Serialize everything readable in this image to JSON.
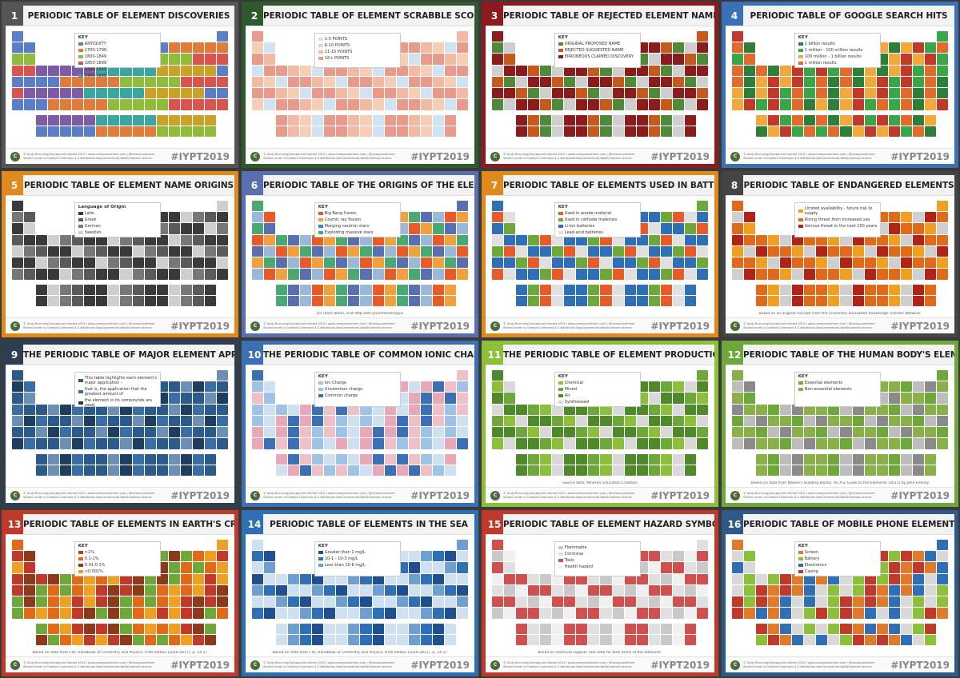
{
  "credit_line1": "© Andy Brunning/Compound Interest 2019 | www.compoundchem.com | @compoundchem",
  "credit_line2": "Shared under a Creative Commons 4.0 Attribution-NonCommercial-NoDerivatives licence",
  "hashtag": "#IYPT2019",
  "logo_letter": "C",
  "posters": [
    {
      "num": "1",
      "title": "PERIODIC TABLE OF ELEMENT DISCOVERIES",
      "accent": "#555555",
      "palette": [
        "#5b7ec9",
        "#e07b39",
        "#8fbc3a",
        "#d9534f",
        "#7d5ba6",
        "#3aa6a0",
        "#c9a227"
      ],
      "key_title": "KEY",
      "key_items": [
        "ANTIQUITY",
        "1700-1799",
        "1800-1849",
        "1850-1899",
        "1900-1949",
        "1950-1999"
      ],
      "note": ""
    },
    {
      "num": "2",
      "title": "PERIODIC TABLE OF ELEMENT SCRABBLE SCORES",
      "accent": "#2e5a2e",
      "palette": [
        "#cfe3f2",
        "#f6cdb5",
        "#f2b9a3",
        "#e89b8a"
      ],
      "key_title": "",
      "key_items": [
        "1-5 POINTS",
        "6-10 POINTS",
        "11-15 POINTS",
        "16+ POINTS"
      ],
      "note": ""
    },
    {
      "num": "3",
      "title": "PERIODIC TABLE OF REJECTED ELEMENT NAMES",
      "accent": "#8c1c1c",
      "palette": [
        "#4e8a3a",
        "#c65a1e",
        "#8c1c1c",
        "#cfcfcf"
      ],
      "key_title": "KEY",
      "key_items": [
        "ORIGINAL PROPOSED NAME",
        "REJECTED SUGGESTED NAME",
        "ERRONEOUS CLAIMED DISCOVERY"
      ],
      "note": ""
    },
    {
      "num": "4",
      "title": "PERIODIC TABLE OF GOOGLE SEARCH HITS",
      "accent": "#3b6fb6",
      "palette": [
        "#2f7f3c",
        "#3aa64a",
        "#f2a93b",
        "#e06b2c",
        "#c0392b"
      ],
      "key_title": "KEY",
      "key_items": [
        "1 billion results",
        "1 million - 100 million results",
        "100 million - 1 billion results",
        "1 million results"
      ],
      "note": ""
    },
    {
      "num": "5",
      "title": "PERIODIC TABLE OF ELEMENT NAME ORIGINS",
      "accent": "#e08a1e",
      "palette": [
        "#3a3a3a",
        "#5a5a5a",
        "#777777",
        "#cfcfcf"
      ],
      "key_title": "Language of Origin",
      "key_items": [
        "Latin",
        "Greek",
        "German",
        "Swedish"
      ],
      "note": ""
    },
    {
      "num": "6",
      "title": "PERIODIC TABLE OF THE ORIGINS OF THE ELEMENTS",
      "accent": "#5a6fb0",
      "palette": [
        "#e85a28",
        "#f0a03c",
        "#2e8fc9",
        "#4aa872",
        "#5a6fb0",
        "#9bb8d9"
      ],
      "key_title": "KEY",
      "key_items": [
        "Big Bang fusion",
        "Cosmic ray fission",
        "Merging neutron stars",
        "Exploding massive stars"
      ],
      "note": "For more detail, visit http://bit.ly/ElementOrigins"
    },
    {
      "num": "7",
      "title": "PERIODIC TABLE OF ELEMENTS USED IN BATTERIES",
      "accent": "#e08a1e",
      "palette": [
        "#e85a28",
        "#6ea83a",
        "#2e6fb6",
        "#e0e0e0"
      ],
      "key_title": "KEY",
      "key_items": [
        "Used in anode material",
        "Used in cathode materials",
        "Li-ion batteries",
        "Lead-acid batteries"
      ],
      "note": ""
    },
    {
      "num": "8",
      "title": "PERIODIC TABLE OF ENDANGERED ELEMENTS",
      "accent": "#444444",
      "palette": [
        "#f0a020",
        "#e06a1a",
        "#b02418",
        "#cfcfcf"
      ],
      "key_title": "",
      "key_items": [
        "Limited availability - future risk to supply",
        "Rising threat from increased use",
        "Serious threat in the next 100 years"
      ],
      "note": "Based on an original concept from the Chemistry Innovation Knowledge Transfer Network."
    },
    {
      "num": "9",
      "title": "THE PERIODIC TABLE OF MAJOR ELEMENT APPLICATIONS",
      "accent": "#2c3e50",
      "palette": [
        "#2c5a8a",
        "#3a6ea5",
        "#1f3e5f",
        "#6d8fb3"
      ],
      "key_title": "",
      "key_items": [
        "This table highlights each element's major application -",
        "that is, the application that the greatest amount of",
        "the element in its compounds are used."
      ],
      "note": ""
    },
    {
      "num": "10",
      "title": "THE PERIODIC TABLE OF COMMON IONIC CHARGES",
      "accent": "#3b6fb6",
      "palette": [
        "#e8a8b8",
        "#9ec3e6",
        "#3b6fb6",
        "#cfe0f0",
        "#f0c0c8"
      ],
      "key_title": "KEY",
      "key_items": [
        "Ion Charge",
        "Uncommon charge",
        "Common charge"
      ],
      "note": ""
    },
    {
      "num": "11",
      "title": "THE PERIODIC TABLE OF ELEMENT PRODUCTION SOURCES",
      "accent": "#8cbf3a",
      "palette": [
        "#8cbf3a",
        "#6ea83a",
        "#4e8a2a",
        "#d9d9d9"
      ],
      "key_title": "KEY",
      "key_items": [
        "Chemical",
        "Mined",
        "Air",
        "Synthesised"
      ],
      "note": "Source data: Minerals Education Coalition"
    },
    {
      "num": "12",
      "title": "PERIODIC TABLE OF THE HUMAN BODY'S ELEMENTS",
      "accent": "#6ea83a",
      "palette": [
        "#6ea83a",
        "#8ab04a",
        "#8a8a8a",
        "#bdbdbd"
      ],
      "key_title": "KEY",
      "key_items": [
        "Essential elements",
        "Non-essential elements"
      ],
      "note": "Based on data from Nature's Building Blocks: An A-Z Guide to the Elements (2011) by John Emsley"
    },
    {
      "num": "13",
      "title": "PERIODIC TABLE OF ELEMENTS IN EARTH'S CRUST",
      "accent": "#c0392b",
      "palette": [
        "#c0392b",
        "#e06a1a",
        "#8c3a1a",
        "#f0a020",
        "#6ea83a"
      ],
      "key_title": "KEY",
      "key_items": [
        ">1%",
        "0.1-1%",
        "0.01-0.1%",
        "<0.001%"
      ],
      "note": "Based on data from CRC Handbook of Chemistry and Physics, 97th edition (2016-2017), p. 14-17"
    },
    {
      "num": "14",
      "title": "PERIODIC TABLE OF ELEMENTS IN THE SEA",
      "accent": "#2e6fb6",
      "palette": [
        "#1f4f8f",
        "#2e6fb6",
        "#6f9fd0",
        "#cfe0f0"
      ],
      "key_title": "KEY",
      "key_items": [
        "Greater than 1 mg/L",
        "10-1 - 10-3 mg/L",
        "Less than 10-6 mg/L"
      ],
      "note": "Based on data from CRC Handbook of Chemistry and Physics, 97th edition (2016-2017), p. 14-17"
    },
    {
      "num": "15",
      "title": "PERIODIC TABLE OF ELEMENT HAZARD SYMBOLS",
      "accent": "#c0392b",
      "palette": [
        "#c9c9c9",
        "#e0e0e0",
        "#d05050",
        "#f0f0f0"
      ],
      "key_title": "",
      "key_items": [
        "Flammable",
        "Corrosive",
        "Toxic",
        "Health hazard"
      ],
      "note": "Based on chemical supplier SDS data for bulk forms of the elements."
    },
    {
      "num": "16",
      "title": "PERIODIC TABLE OF MOBILE PHONE ELEMENTS",
      "accent": "#2e5a8a",
      "palette": [
        "#e07b2c",
        "#8cbf3a",
        "#2e6fb6",
        "#c0392b",
        "#d9d9d9"
      ],
      "key_title": "KEY",
      "key_items": [
        "Screen",
        "Battery",
        "Electronics",
        "Casing"
      ],
      "note": ""
    }
  ]
}
